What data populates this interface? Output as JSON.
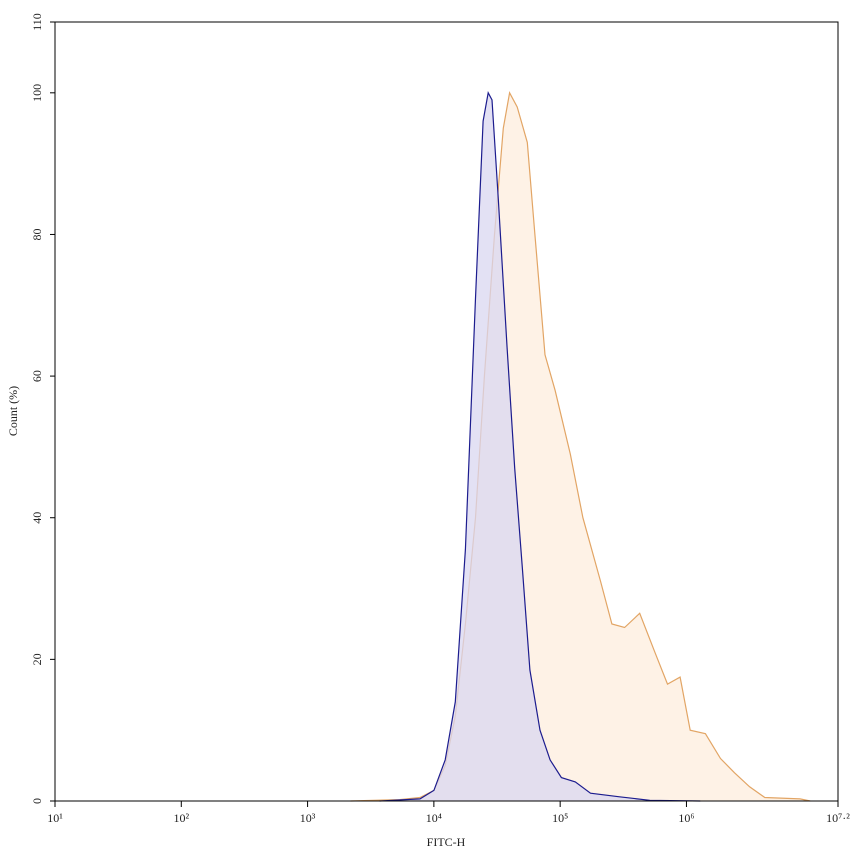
{
  "chart_data": {
    "type": "area",
    "x_label": "FITC-H",
    "y_label": "Count (%)",
    "log_x": true,
    "xlim": [
      10,
      15848932
    ],
    "ylim": [
      0,
      110
    ],
    "xticks": [
      {
        "value": 10,
        "label": "10¹"
      },
      {
        "value": 100,
        "label": "10²"
      },
      {
        "value": 1000,
        "label": "10³"
      },
      {
        "value": 10000,
        "label": "10⁴"
      },
      {
        "value": 100000,
        "label": "10⁵"
      },
      {
        "value": 1000000,
        "label": "10⁶"
      },
      {
        "value": 15848932,
        "label": "10⁷·²"
      }
    ],
    "yticks": [
      0,
      20,
      40,
      60,
      80,
      100,
      110
    ],
    "series": [
      {
        "color": "#e2a565",
        "fill": "#fdeedd",
        "x": [
          2188,
          5370,
          7762,
          10000,
          12303,
          14791,
          17783,
          21380,
          25119,
          30200,
          35481,
          39811,
          45709,
          54954,
          63096,
          75858,
          91201,
          120226,
          151356,
          208930,
          257040,
          323594,
          426580,
          562341,
          707946,
          891251,
          1071519,
          1412538,
          1862087,
          2398833,
          3162278,
          4168694,
          7943282,
          9549926
        ],
        "values": [
          0,
          0.2,
          0.5,
          1.5,
          5,
          12,
          25,
          40,
          60,
          80,
          95,
          100,
          98,
          93,
          80,
          63,
          58,
          49,
          40,
          31,
          25,
          24.5,
          26.5,
          21,
          16.5,
          17.5,
          10,
          9.5,
          6,
          4,
          2,
          0.5,
          0.3,
          0
        ]
      },
      {
        "color": "#1c1c8e",
        "fill": "#d9d7f0",
        "x": [
          3715,
          7762,
          10000,
          12303,
          14791,
          17783,
          21380,
          24547,
          26915,
          28840,
          32359,
          38019,
          43652,
          50119,
          57544,
          69183,
          83176,
          102329,
          131826,
          173780,
          295121,
          512861,
          1288250
        ],
        "values": [
          0,
          0.3,
          1.5,
          5.8,
          14,
          35.5,
          71,
          96,
          100,
          99,
          85,
          64,
          47,
          33,
          18.5,
          10,
          5.8,
          3.3,
          2.7,
          1.1,
          0.6,
          0.1,
          0
        ]
      }
    ]
  }
}
